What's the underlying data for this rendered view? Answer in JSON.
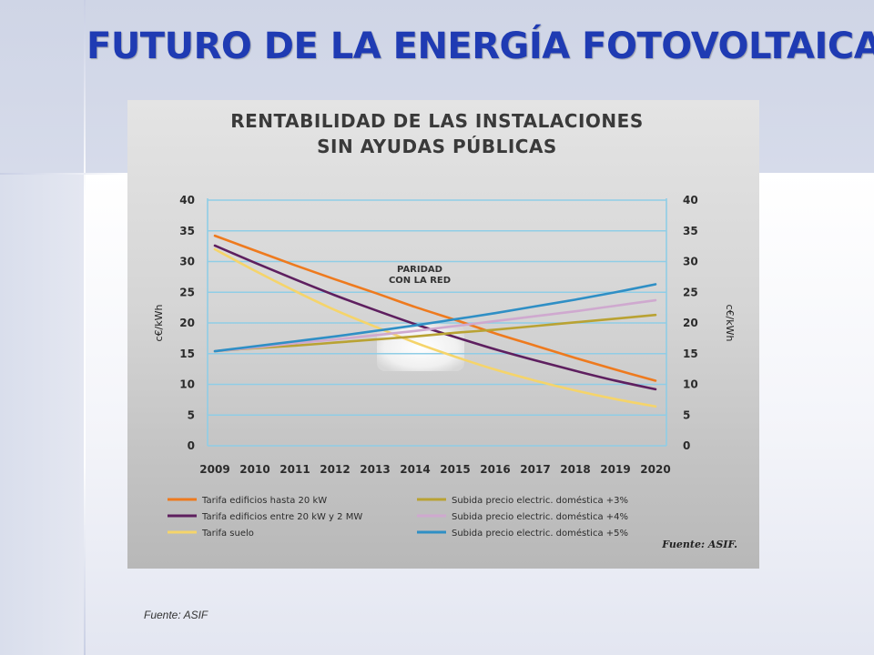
{
  "slide": {
    "title": "FUTURO DE LA ENERGÍA FOTOVOLTAICA",
    "source_note": "Fuente: ASIF"
  },
  "chart_data": {
    "type": "line",
    "title": "RENTABILIDAD DE LAS INSTALACIONES",
    "subtitle": "SIN AYUDAS PÚBLICAS",
    "ylabel_left": "c€/kWh",
    "ylabel_right": "c€/kWh",
    "ylim": [
      0,
      40
    ],
    "yticks": [
      0,
      5,
      10,
      15,
      20,
      25,
      30,
      35,
      40
    ],
    "x": [
      2009,
      2010,
      2011,
      2012,
      2013,
      2014,
      2015,
      2016,
      2017,
      2018,
      2019,
      2020
    ],
    "grid": true,
    "annotation": [
      "PARIDAD",
      "CON LA RED"
    ],
    "source": "Fuente: ASIF.",
    "series": [
      {
        "name": "Tarifa edificios hasta 20 kW",
        "color": "#ee7a1e",
        "values": [
          34.2,
          31.8,
          29.4,
          27.1,
          24.9,
          22.6,
          20.5,
          18.3,
          16.3,
          14.3,
          12.4,
          10.6
        ]
      },
      {
        "name": "Tarifa edificios entre 20 kW y 2 MW",
        "color": "#5e1f5f",
        "values": [
          32.6,
          29.8,
          27.1,
          24.5,
          22.1,
          19.8,
          17.7,
          15.7,
          13.9,
          12.2,
          10.6,
          9.2
        ]
      },
      {
        "name": "Tarifa suelo",
        "color": "#f5d46a",
        "values": [
          32.0,
          28.5,
          25.2,
          22.1,
          19.4,
          16.8,
          14.5,
          12.4,
          10.6,
          9.0,
          7.6,
          6.4
        ]
      },
      {
        "name": "Subida precio electric. doméstica +3%",
        "color": "#b9a233",
        "values": [
          15.4,
          15.9,
          16.3,
          16.8,
          17.3,
          17.8,
          18.4,
          18.9,
          19.5,
          20.1,
          20.7,
          21.3
        ]
      },
      {
        "name": "Subida precio electric. doméstica +4%",
        "color": "#cfa9cf",
        "values": [
          15.4,
          16.0,
          16.7,
          17.3,
          18.0,
          18.7,
          19.5,
          20.3,
          21.1,
          21.9,
          22.8,
          23.7
        ]
      },
      {
        "name": "Subida precio electric. doméstica +5%",
        "color": "#2f8fc5",
        "values": [
          15.4,
          16.2,
          17.0,
          17.8,
          18.7,
          19.6,
          20.6,
          21.6,
          22.7,
          23.8,
          25.0,
          26.3
        ]
      }
    ]
  }
}
